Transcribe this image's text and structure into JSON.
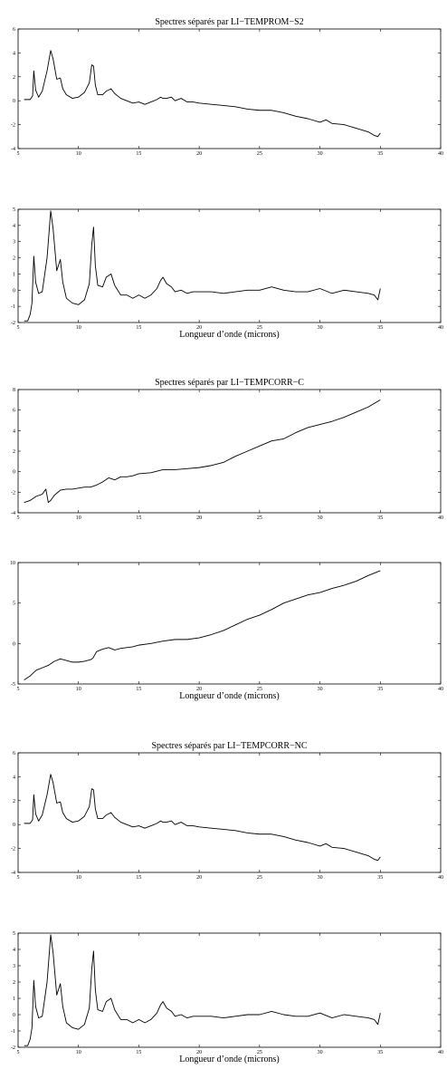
{
  "chart_data": [
    {
      "type": "line",
      "title": "Spectres séparés par LI−TEMPROM−S2",
      "xlabel": "",
      "ylabel": "",
      "xlim": [
        5,
        40
      ],
      "ylim": [
        -4,
        6
      ],
      "xticks": [
        5,
        10,
        15,
        20,
        25,
        30,
        35,
        40
      ],
      "yticks": [
        -4,
        -2,
        0,
        2,
        4,
        6
      ],
      "grid": false,
      "series": [
        {
          "x": [
            5.5,
            6.0,
            6.2,
            6.3,
            6.45,
            6.7,
            7.0,
            7.4,
            7.7,
            7.9,
            8.2,
            8.5,
            8.7,
            9.0,
            9.5,
            10.0,
            10.5,
            10.9,
            11.1,
            11.25,
            11.4,
            11.6,
            12.0,
            12.3,
            12.7,
            13.0,
            13.5,
            14.0,
            14.5,
            15.0,
            15.5,
            16.0,
            16.5,
            16.8,
            17.0,
            17.3,
            17.7,
            18.0,
            18.5,
            19.0,
            19.5,
            20.0,
            21.0,
            22.0,
            23.0,
            24.0,
            25.0,
            26.0,
            27.0,
            28.0,
            29.0,
            30.0,
            30.5,
            31.0,
            32.0,
            33.0,
            34.0,
            34.5,
            34.8,
            35.0
          ],
          "y": [
            0.1,
            0.1,
            0.4,
            2.5,
            0.9,
            0.3,
            0.8,
            2.5,
            4.2,
            3.5,
            1.8,
            1.9,
            1.0,
            0.5,
            0.2,
            0.3,
            0.7,
            1.5,
            3.0,
            2.9,
            1.3,
            0.5,
            0.5,
            0.8,
            1.0,
            0.6,
            0.2,
            0.0,
            -0.2,
            -0.1,
            -0.3,
            -0.1,
            0.1,
            0.3,
            0.2,
            0.2,
            0.3,
            0.0,
            0.2,
            -0.1,
            -0.1,
            -0.2,
            -0.3,
            -0.4,
            -0.5,
            -0.7,
            -0.8,
            -0.8,
            -1.0,
            -1.3,
            -1.5,
            -1.8,
            -1.6,
            -1.9,
            -2.0,
            -2.3,
            -2.6,
            -2.9,
            -3.0,
            -2.7
          ]
        }
      ]
    },
    {
      "type": "line",
      "title": "",
      "xlabel": "Longueur d’onde (microns)",
      "ylabel": "",
      "xlim": [
        5,
        40
      ],
      "ylim": [
        -2,
        5
      ],
      "xticks": [
        5,
        10,
        15,
        20,
        25,
        30,
        35,
        40
      ],
      "yticks": [
        -2,
        -1,
        0,
        1,
        2,
        3,
        4,
        5
      ],
      "grid": false,
      "series": [
        {
          "x": [
            5.5,
            5.8,
            6.0,
            6.15,
            6.3,
            6.45,
            6.7,
            7.0,
            7.4,
            7.7,
            7.9,
            8.2,
            8.5,
            8.7,
            9.0,
            9.5,
            10.0,
            10.5,
            10.9,
            11.1,
            11.25,
            11.4,
            11.6,
            12.0,
            12.3,
            12.7,
            13.0,
            13.5,
            14.0,
            14.5,
            15.0,
            15.5,
            16.0,
            16.5,
            16.8,
            17.0,
            17.3,
            17.7,
            18.0,
            18.5,
            19.0,
            19.5,
            20.0,
            21.0,
            22.0,
            23.0,
            24.0,
            25.0,
            26.0,
            27.0,
            28.0,
            29.0,
            30.0,
            31.0,
            32.0,
            33.0,
            34.0,
            34.5,
            34.8,
            35.0
          ],
          "y": [
            -1.9,
            -1.9,
            -1.5,
            -0.8,
            2.1,
            0.5,
            -0.2,
            -0.1,
            2.0,
            4.9,
            3.8,
            1.2,
            1.9,
            0.5,
            -0.5,
            -0.8,
            -0.9,
            -0.6,
            0.4,
            2.8,
            3.9,
            1.5,
            0.3,
            0.2,
            0.8,
            1.0,
            0.3,
            -0.3,
            -0.3,
            -0.5,
            -0.3,
            -0.5,
            -0.3,
            0.1,
            0.6,
            0.8,
            0.4,
            0.2,
            -0.1,
            0.0,
            -0.2,
            -0.1,
            -0.1,
            -0.1,
            -0.2,
            -0.1,
            0.0,
            0.0,
            0.2,
            0.0,
            -0.1,
            -0.1,
            0.1,
            -0.2,
            0.0,
            -0.1,
            -0.2,
            -0.3,
            -0.6,
            0.1
          ]
        }
      ]
    },
    {
      "type": "line",
      "title": "Spectres séparés par LI−TEMPCORR−C",
      "xlabel": "",
      "ylabel": "",
      "xlim": [
        5,
        40
      ],
      "ylim": [
        -4,
        8
      ],
      "xticks": [
        5,
        10,
        15,
        20,
        25,
        30,
        35,
        40
      ],
      "yticks": [
        -4,
        -2,
        0,
        2,
        4,
        6,
        8
      ],
      "grid": false,
      "series": [
        {
          "x": [
            5.5,
            6.0,
            6.5,
            7.0,
            7.3,
            7.5,
            7.7,
            8.0,
            8.5,
            9.0,
            9.5,
            10.0,
            10.5,
            11.0,
            11.5,
            12.0,
            12.5,
            13.0,
            13.5,
            14.0,
            14.5,
            15.0,
            16.0,
            17.0,
            18.0,
            19.0,
            20.0,
            21.0,
            22.0,
            23.0,
            24.0,
            25.0,
            26.0,
            27.0,
            28.0,
            29.0,
            30.0,
            31.0,
            32.0,
            33.0,
            34.0,
            35.0
          ],
          "y": [
            -3.0,
            -2.8,
            -2.4,
            -2.2,
            -1.7,
            -3.0,
            -2.8,
            -2.3,
            -1.8,
            -1.7,
            -1.7,
            -1.6,
            -1.5,
            -1.5,
            -1.3,
            -1.0,
            -0.6,
            -0.8,
            -0.5,
            -0.5,
            -0.4,
            -0.2,
            -0.1,
            0.2,
            0.2,
            0.3,
            0.4,
            0.6,
            0.9,
            1.5,
            2.0,
            2.5,
            3.0,
            3.2,
            3.8,
            4.3,
            4.6,
            4.9,
            5.3,
            5.8,
            6.3,
            7.0
          ]
        }
      ]
    },
    {
      "type": "line",
      "title": "",
      "xlabel": "Longueur d’onde (microns)",
      "ylabel": "",
      "xlim": [
        5,
        40
      ],
      "ylim": [
        -5,
        10
      ],
      "xticks": [
        5,
        10,
        15,
        20,
        25,
        30,
        35,
        40
      ],
      "yticks": [
        -5,
        0,
        5,
        10
      ],
      "grid": false,
      "series": [
        {
          "x": [
            5.5,
            6.0,
            6.5,
            7.0,
            7.5,
            8.0,
            8.5,
            9.0,
            9.5,
            10.0,
            10.5,
            11.0,
            11.2,
            11.5,
            12.0,
            12.5,
            13.0,
            13.5,
            14.0,
            14.5,
            15.0,
            16.0,
            17.0,
            18.0,
            19.0,
            20.0,
            21.0,
            22.0,
            23.0,
            24.0,
            25.0,
            26.0,
            27.0,
            28.0,
            29.0,
            30.0,
            31.0,
            32.0,
            33.0,
            34.0,
            35.0
          ],
          "y": [
            -4.5,
            -4.0,
            -3.3,
            -3.0,
            -2.7,
            -2.2,
            -1.9,
            -2.1,
            -2.3,
            -2.3,
            -2.2,
            -2.0,
            -1.8,
            -1.0,
            -0.7,
            -0.5,
            -0.8,
            -0.6,
            -0.5,
            -0.4,
            -0.2,
            0.0,
            0.3,
            0.5,
            0.5,
            0.7,
            1.1,
            1.6,
            2.3,
            3.0,
            3.5,
            4.2,
            5.0,
            5.5,
            6.0,
            6.3,
            6.8,
            7.2,
            7.7,
            8.4,
            9.0
          ]
        }
      ]
    },
    {
      "type": "line",
      "title": "Spectres séparés par LI−TEMPCORR−NC",
      "xlabel": "",
      "ylabel": "",
      "xlim": [
        5,
        40
      ],
      "ylim": [
        -4,
        6
      ],
      "xticks": [
        5,
        10,
        15,
        20,
        25,
        30,
        35,
        40
      ],
      "yticks": [
        -4,
        -2,
        0,
        2,
        4,
        6
      ],
      "grid": false,
      "series": [
        {
          "x": [
            5.5,
            6.0,
            6.2,
            6.3,
            6.45,
            6.7,
            7.0,
            7.4,
            7.7,
            7.9,
            8.2,
            8.5,
            8.7,
            9.0,
            9.5,
            10.0,
            10.5,
            10.9,
            11.1,
            11.25,
            11.4,
            11.6,
            12.0,
            12.3,
            12.7,
            13.0,
            13.5,
            14.0,
            14.5,
            15.0,
            15.5,
            16.0,
            16.5,
            16.8,
            17.0,
            17.3,
            17.7,
            18.0,
            18.5,
            19.0,
            19.5,
            20.0,
            21.0,
            22.0,
            23.0,
            24.0,
            25.0,
            26.0,
            27.0,
            28.0,
            29.0,
            30.0,
            30.5,
            31.0,
            32.0,
            33.0,
            34.0,
            34.5,
            34.8,
            35.0
          ],
          "y": [
            0.1,
            0.1,
            0.4,
            2.5,
            0.9,
            0.3,
            0.8,
            2.5,
            4.2,
            3.5,
            1.8,
            1.9,
            1.0,
            0.5,
            0.2,
            0.3,
            0.7,
            1.5,
            3.0,
            2.9,
            1.3,
            0.5,
            0.5,
            0.8,
            1.0,
            0.6,
            0.2,
            0.0,
            -0.2,
            -0.1,
            -0.3,
            -0.1,
            0.1,
            0.3,
            0.2,
            0.2,
            0.3,
            0.0,
            0.2,
            -0.1,
            -0.1,
            -0.2,
            -0.3,
            -0.4,
            -0.5,
            -0.7,
            -0.8,
            -0.8,
            -1.0,
            -1.3,
            -1.5,
            -1.8,
            -1.6,
            -1.9,
            -2.0,
            -2.3,
            -2.6,
            -2.9,
            -3.0,
            -2.7
          ]
        }
      ]
    },
    {
      "type": "line",
      "title": "",
      "xlabel": "Longueur d’onde (microns)",
      "ylabel": "",
      "xlim": [
        5,
        40
      ],
      "ylim": [
        -2,
        5
      ],
      "xticks": [
        5,
        10,
        15,
        20,
        25,
        30,
        35,
        40
      ],
      "yticks": [
        -2,
        -1,
        0,
        1,
        2,
        3,
        4,
        5
      ],
      "grid": false,
      "series": [
        {
          "x": [
            5.5,
            5.8,
            6.0,
            6.15,
            6.3,
            6.45,
            6.7,
            7.0,
            7.4,
            7.7,
            7.9,
            8.2,
            8.5,
            8.7,
            9.0,
            9.5,
            10.0,
            10.5,
            10.9,
            11.1,
            11.25,
            11.4,
            11.6,
            12.0,
            12.3,
            12.7,
            13.0,
            13.5,
            14.0,
            14.5,
            15.0,
            15.5,
            16.0,
            16.5,
            16.8,
            17.0,
            17.3,
            17.7,
            18.0,
            18.5,
            19.0,
            19.5,
            20.0,
            21.0,
            22.0,
            23.0,
            24.0,
            25.0,
            26.0,
            27.0,
            28.0,
            29.0,
            30.0,
            31.0,
            32.0,
            33.0,
            34.0,
            34.5,
            34.8,
            35.0
          ],
          "y": [
            -1.9,
            -1.9,
            -1.5,
            -0.8,
            2.1,
            0.5,
            -0.2,
            -0.1,
            2.0,
            4.9,
            3.8,
            1.2,
            1.9,
            0.5,
            -0.5,
            -0.8,
            -0.9,
            -0.6,
            0.4,
            2.8,
            3.9,
            1.5,
            0.3,
            0.2,
            0.8,
            1.0,
            0.3,
            -0.3,
            -0.3,
            -0.5,
            -0.3,
            -0.5,
            -0.3,
            0.1,
            0.6,
            0.8,
            0.4,
            0.2,
            -0.1,
            0.0,
            -0.2,
            -0.1,
            -0.1,
            -0.1,
            -0.2,
            -0.1,
            0.0,
            0.0,
            0.2,
            0.0,
            -0.1,
            -0.1,
            0.1,
            -0.2,
            0.0,
            -0.1,
            -0.2,
            -0.3,
            -0.6,
            0.1
          ]
        }
      ]
    }
  ]
}
